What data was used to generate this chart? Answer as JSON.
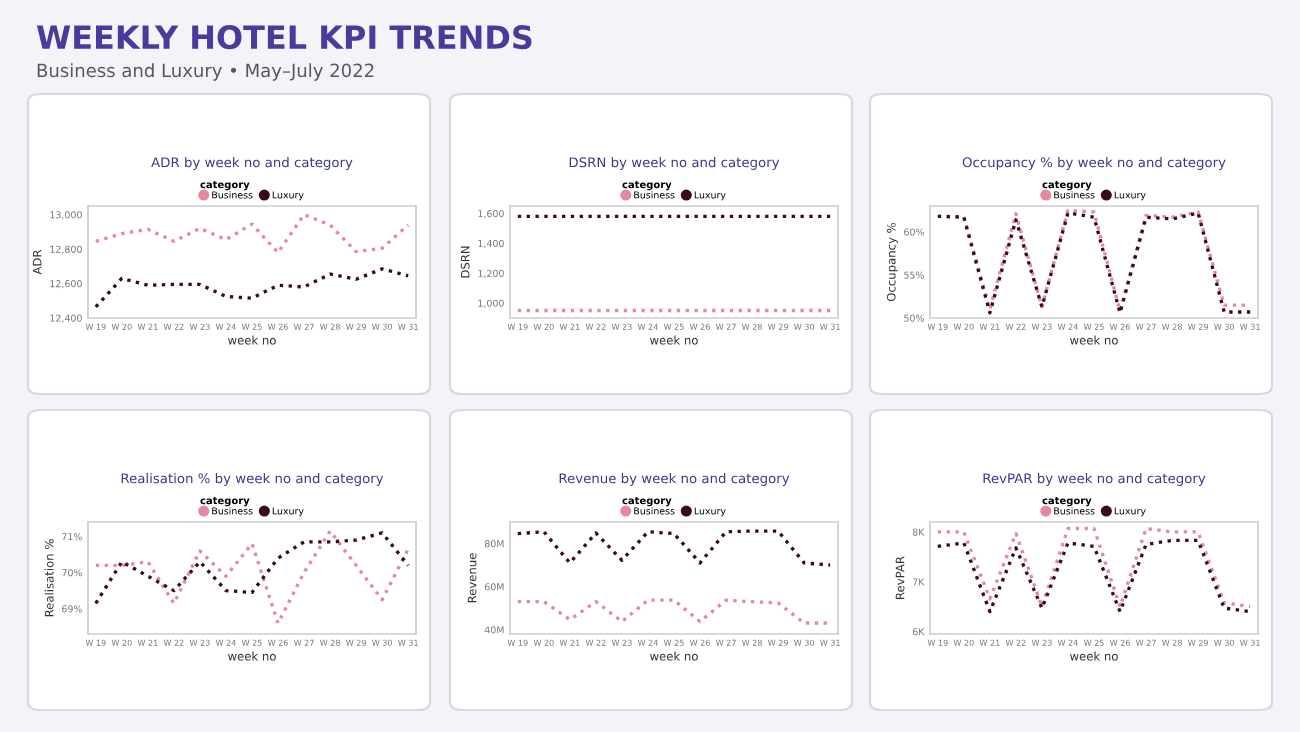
{
  "chart_data": [
    {
      "type": "other",
      "title": "WEEKLY HOTEL KPI TRENDS",
      "subtitle": "Business and Luxury • May–July 2022"
    },
    {
      "type": "line",
      "title": "ADR by week no and category",
      "xlabel": "week no",
      "ylabel": "ADR",
      "legend_title": "category",
      "legend": "top",
      "line_style": "dotted",
      "categories": [
        "W 19",
        "W 20",
        "W 21",
        "W 22",
        "W 23",
        "W 24",
        "W 25",
        "W 26",
        "W 27",
        "W 28",
        "W 29",
        "W 30",
        "W 31"
      ],
      "ylim": [
        12400,
        13050
      ],
      "yticks": [
        {
          "value": 12400,
          "label": "12,400"
        },
        {
          "value": 12600,
          "label": "12,600"
        },
        {
          "value": 12800,
          "label": "12,800"
        },
        {
          "value": 13000,
          "label": "13,000"
        }
      ],
      "series": [
        {
          "name": "Business",
          "color": "#e58a9e",
          "values": [
            12845,
            12890,
            12915,
            12845,
            12920,
            12855,
            12945,
            12780,
            13000,
            12940,
            12785,
            12805,
            12940
          ]
        },
        {
          "name": "Luxury",
          "color": "#3a0a1e",
          "values": [
            12465,
            12630,
            12590,
            12595,
            12595,
            12525,
            12515,
            12590,
            12580,
            12655,
            12625,
            12685,
            12645
          ]
        }
      ]
    },
    {
      "type": "line",
      "title": "DSRN by week no and category",
      "xlabel": "week no",
      "ylabel": "DSRN",
      "legend_title": "category",
      "legend": "top",
      "line_style": "dotted",
      "categories": [
        "W 19",
        "W 20",
        "W 21",
        "W 22",
        "W 23",
        "W 24",
        "W 25",
        "W 26",
        "W 27",
        "W 28",
        "W 29",
        "W 30",
        "W 31"
      ],
      "ylim": [
        900,
        1650
      ],
      "yticks": [
        {
          "value": 1000,
          "label": "1,000"
        },
        {
          "value": 1200,
          "label": "1,200"
        },
        {
          "value": 1400,
          "label": "1,400"
        },
        {
          "value": 1600,
          "label": "1,600"
        }
      ],
      "series": [
        {
          "name": "Business",
          "color": "#e58a9e",
          "values": [
            950,
            950,
            950,
            950,
            950,
            950,
            950,
            950,
            950,
            950,
            950,
            950,
            950
          ]
        },
        {
          "name": "Luxury",
          "color": "#3a0a1e",
          "values": [
            1580,
            1580,
            1580,
            1580,
            1580,
            1580,
            1580,
            1580,
            1580,
            1580,
            1580,
            1580,
            1580
          ]
        }
      ]
    },
    {
      "type": "line",
      "title": "Occupancy % by week no and category",
      "xlabel": "week no",
      "ylabel": "Occupancy %",
      "legend_title": "category",
      "legend": "top",
      "line_style": "dotted",
      "categories": [
        "W 19",
        "W 20",
        "W 21",
        "W 22",
        "W 23",
        "W 24",
        "W 25",
        "W 26",
        "W 27",
        "W 28",
        "W 29",
        "W 30",
        "W 31"
      ],
      "ylim": [
        50,
        63
      ],
      "yticks": [
        {
          "value": 50,
          "label": "50%"
        },
        {
          "value": 55,
          "label": "55%"
        },
        {
          "value": 60,
          "label": "60%"
        }
      ],
      "series": [
        {
          "name": "Business",
          "color": "#e58a9e",
          "values": [
            61.8,
            61.8,
            51.0,
            62.1,
            51.3,
            62.5,
            62.3,
            50.8,
            61.9,
            61.7,
            62.3,
            51.5,
            51.5
          ]
        },
        {
          "name": "Luxury",
          "color": "#3a0a1e",
          "values": [
            61.8,
            61.7,
            50.6,
            61.4,
            51.3,
            62.2,
            61.7,
            50.6,
            61.7,
            61.5,
            62.2,
            50.7,
            50.7
          ]
        }
      ]
    },
    {
      "type": "line",
      "title": "Realisation % by week no and category",
      "xlabel": "week no",
      "ylabel": "Realisation %",
      "legend_title": "category",
      "legend": "top",
      "line_style": "dotted",
      "categories": [
        "W 19",
        "W 20",
        "W 21",
        "W 22",
        "W 23",
        "W 24",
        "W 25",
        "W 26",
        "W 27",
        "W 28",
        "W 29",
        "W 30",
        "W 31"
      ],
      "ylim": [
        68.3,
        71.4
      ],
      "yticks": [
        {
          "value": 69,
          "label": "69%"
        },
        {
          "value": 70,
          "label": "70%"
        },
        {
          "value": 71,
          "label": "71%"
        }
      ],
      "series": [
        {
          "name": "Business",
          "color": "#e58a9e",
          "values": [
            70.2,
            70.2,
            70.3,
            69.15,
            70.6,
            69.9,
            70.8,
            68.6,
            70.0,
            71.15,
            70.2,
            69.25,
            70.65
          ]
        },
        {
          "name": "Luxury",
          "color": "#3a0a1e",
          "values": [
            69.15,
            70.3,
            69.9,
            69.5,
            70.3,
            69.5,
            69.45,
            70.4,
            70.85,
            70.85,
            70.9,
            71.1,
            70.2
          ]
        }
      ]
    },
    {
      "type": "line",
      "title": "Revenue by week no and category",
      "xlabel": "week no",
      "ylabel": "Revenue",
      "legend_title": "category",
      "legend": "top",
      "line_style": "dotted",
      "categories": [
        "W 19",
        "W 20",
        "W 21",
        "W 22",
        "W 23",
        "W 24",
        "W 25",
        "W 26",
        "W 27",
        "W 28",
        "W 29",
        "W 30",
        "W 31"
      ],
      "ylim": [
        38,
        90
      ],
      "yticks": [
        {
          "value": 40,
          "label": "40M"
        },
        {
          "value": 60,
          "label": "60M"
        },
        {
          "value": 80,
          "label": "80M"
        }
      ],
      "series": [
        {
          "name": "Business",
          "color": "#e58a9e",
          "values": [
            53,
            53,
            44.7,
            53,
            43.8,
            53.7,
            53.7,
            43.8,
            53.7,
            53,
            52.4,
            43.1,
            43.1
          ]
        },
        {
          "name": "Luxury",
          "color": "#3a0a1e",
          "values": [
            84.6,
            85.5,
            71,
            84.9,
            72.2,
            85.5,
            84.6,
            71,
            85.5,
            85.8,
            85.8,
            71,
            70
          ]
        }
      ]
    },
    {
      "type": "line",
      "title": "RevPAR by week no and category",
      "xlabel": "week no",
      "ylabel": "RevPAR",
      "legend_title": "category",
      "legend": "top",
      "line_style": "dotted",
      "categories": [
        "W 19",
        "W 20",
        "W 21",
        "W 22",
        "W 23",
        "W 24",
        "W 25",
        "W 26",
        "W 27",
        "W 28",
        "W 29",
        "W 30",
        "W 31"
      ],
      "ylim": [
        5.95,
        8.2
      ],
      "yticks": [
        {
          "value": 6,
          "label": "6K"
        },
        {
          "value": 7,
          "label": "7K"
        },
        {
          "value": 8,
          "label": "8K"
        }
      ],
      "series": [
        {
          "name": "Business",
          "color": "#e58a9e",
          "values": [
            8.0,
            8.0,
            6.66,
            7.97,
            6.5,
            8.07,
            8.07,
            6.5,
            8.07,
            8.0,
            8.0,
            6.58,
            6.5
          ]
        },
        {
          "name": "Luxury",
          "color": "#3a0a1e",
          "values": [
            7.71,
            7.78,
            6.4,
            7.68,
            6.47,
            7.78,
            7.71,
            6.4,
            7.75,
            7.83,
            7.83,
            6.47,
            6.4
          ]
        }
      ]
    }
  ]
}
